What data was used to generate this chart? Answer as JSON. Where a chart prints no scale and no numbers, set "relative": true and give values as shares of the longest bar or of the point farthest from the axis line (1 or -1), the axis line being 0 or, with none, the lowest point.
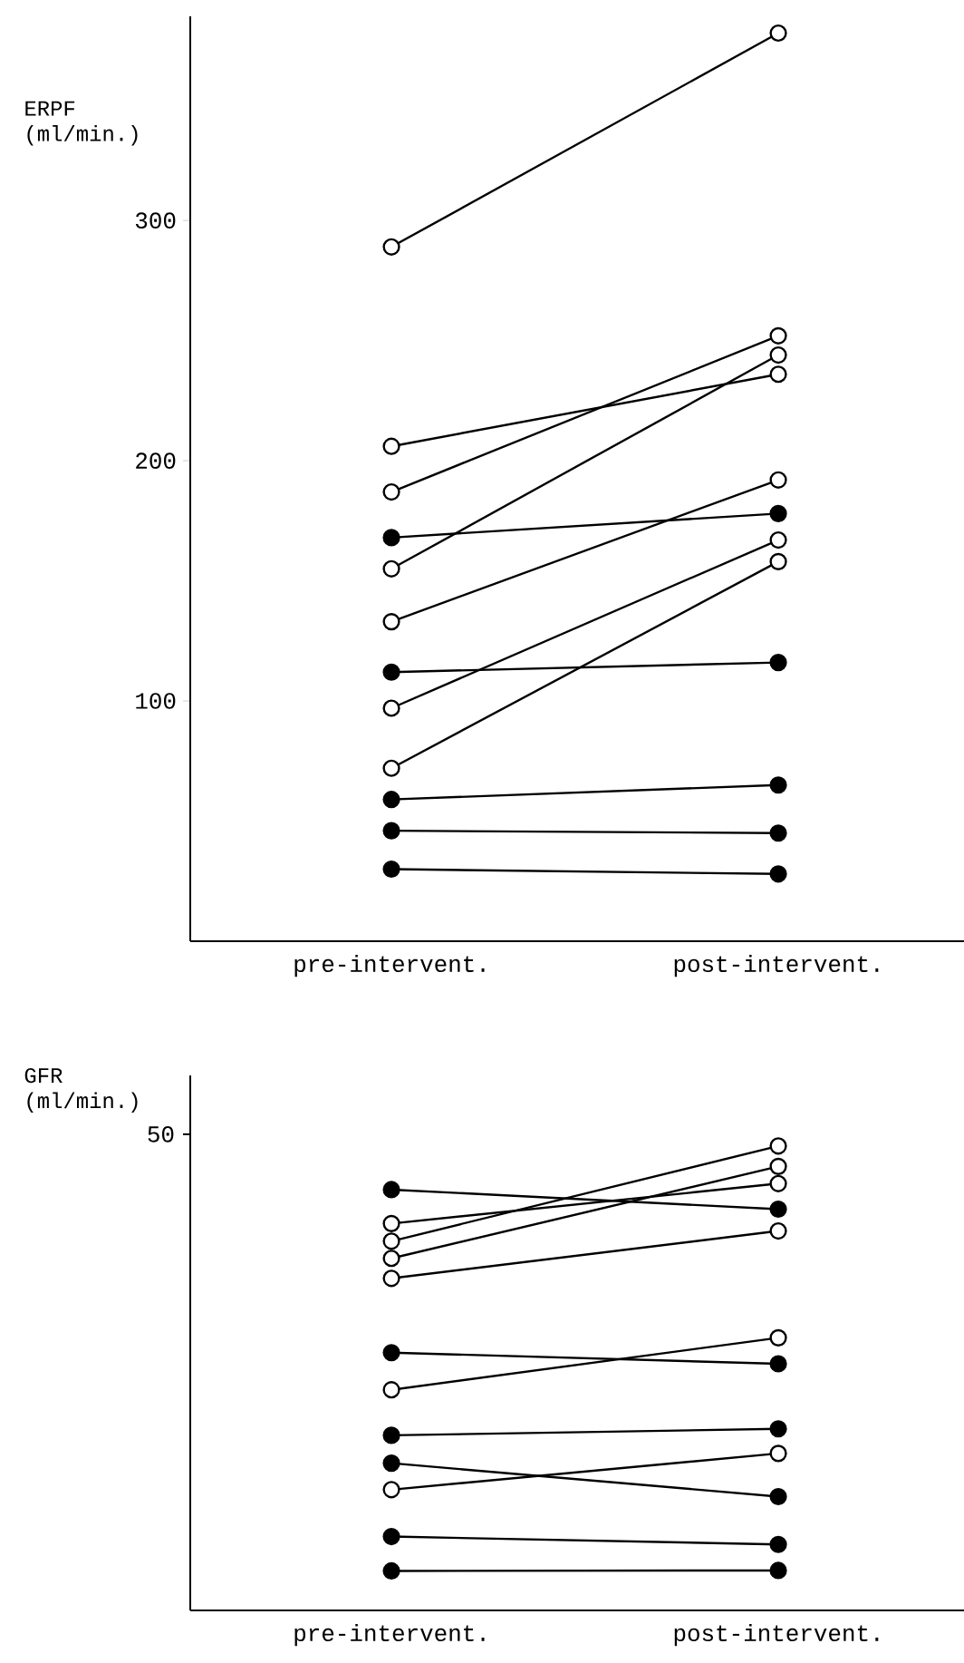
{
  "chart_data": [
    {
      "type": "line",
      "ylabel": "ERPF (ml/min.)",
      "categories": [
        "pre-intervent.",
        "post-intervent."
      ],
      "ylim": [
        0,
        385
      ],
      "yticks": [
        100,
        200,
        300
      ],
      "marker": "circle",
      "series": [
        {
          "color": "#000000",
          "colors": [
            "#ffffff",
            "#ffffff"
          ],
          "values": [
            289,
            378
          ]
        },
        {
          "color": "#000000",
          "colors": [
            "#ffffff",
            "#ffffff"
          ],
          "values": [
            206,
            236
          ]
        },
        {
          "color": "#000000",
          "colors": [
            "#ffffff",
            "#ffffff"
          ],
          "values": [
            187,
            252
          ]
        },
        {
          "color": "#000000",
          "colors": [
            "#ffffff",
            "#ffffff"
          ],
          "values": [
            155,
            244
          ]
        },
        {
          "color": "#000000",
          "colors": [
            "#000000",
            "#000000"
          ],
          "values": [
            168,
            178
          ]
        },
        {
          "color": "#000000",
          "colors": [
            "#ffffff",
            "#ffffff"
          ],
          "values": [
            133,
            192
          ]
        },
        {
          "color": "#000000",
          "colors": [
            "#000000",
            "#000000"
          ],
          "values": [
            112,
            116
          ]
        },
        {
          "color": "#000000",
          "colors": [
            "#ffffff",
            "#ffffff"
          ],
          "values": [
            97,
            167
          ]
        },
        {
          "color": "#000000",
          "colors": [
            "#ffffff",
            "#ffffff"
          ],
          "values": [
            72,
            158
          ]
        },
        {
          "color": "#000000",
          "colors": [
            "#000000",
            "#000000"
          ],
          "values": [
            59,
            65
          ]
        },
        {
          "color": "#000000",
          "colors": [
            "#000000",
            "#000000"
          ],
          "values": [
            46,
            45
          ]
        },
        {
          "color": "#000000",
          "colors": [
            "#000000",
            "#000000"
          ],
          "values": [
            30,
            28
          ]
        }
      ]
    },
    {
      "type": "line",
      "ylabel": "GFR (ml/min.)",
      "categories": [
        "pre-intervent.",
        "post-intervent."
      ],
      "relative": true,
      "marker": "circle",
      "annotations": [
        "50"
      ],
      "series": [
        {
          "color": "#000000",
          "colors": [
            "#000000",
            "#000000"
          ],
          "values": [
            0.906,
            0.864
          ]
        },
        {
          "color": "#000000",
          "colors": [
            "#ffffff",
            "#ffffff"
          ],
          "values": [
            0.833,
            0.919
          ]
        },
        {
          "color": "#000000",
          "colors": [
            "#ffffff",
            "#ffffff"
          ],
          "values": [
            0.795,
            1
          ]
        },
        {
          "color": "#000000",
          "colors": [
            "#ffffff",
            "#ffffff"
          ],
          "values": [
            0.758,
            0.956
          ]
        },
        {
          "color": "#000000",
          "colors": [
            "#ffffff",
            "#ffffff"
          ],
          "values": [
            0.715,
            0.817
          ]
        },
        {
          "color": "#000000",
          "colors": [
            "#000000",
            "#000000"
          ],
          "values": [
            0.555,
            0.531
          ]
        },
        {
          "color": "#000000",
          "colors": [
            "#ffffff",
            "#ffffff"
          ],
          "values": [
            0.475,
            0.587
          ]
        },
        {
          "color": "#000000",
          "colors": [
            "#000000",
            "#000000"
          ],
          "values": [
            0.377,
            0.391
          ]
        },
        {
          "color": "#000000",
          "colors": [
            "#000000",
            "#000000"
          ],
          "values": [
            0.317,
            0.245
          ]
        },
        {
          "color": "#000000",
          "colors": [
            "#ffffff",
            "#ffffff"
          ],
          "values": [
            0.26,
            0.338
          ]
        },
        {
          "color": "#000000",
          "colors": [
            "#000000",
            "#000000"
          ],
          "values": [
            0.159,
            0.142
          ]
        },
        {
          "color": "#000000",
          "colors": [
            "#000000",
            "#000000"
          ],
          "values": [
            0.085,
            0.086
          ]
        }
      ]
    }
  ]
}
